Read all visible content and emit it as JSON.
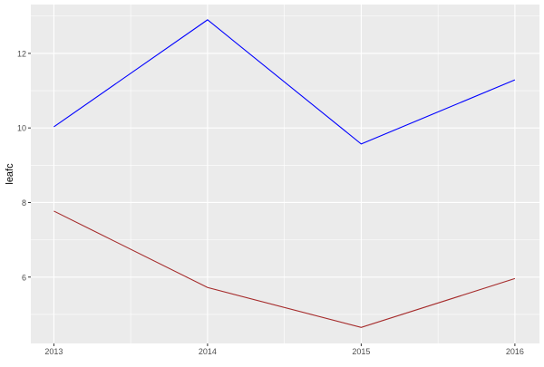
{
  "chart_data": {
    "type": "line",
    "title": "",
    "xlabel": "",
    "ylabel": "leafc",
    "x": [
      2013,
      2014,
      2015,
      2016
    ],
    "x_tick_labels": [
      "2013",
      "2014",
      "2015",
      "2016"
    ],
    "y_ticks": [
      6,
      8,
      10,
      12
    ],
    "y_tick_labels": [
      "6",
      "8",
      "10",
      "12"
    ],
    "xlim": [
      2012.85,
      2016.16
    ],
    "ylim": [
      4.22,
      13.31
    ],
    "grid": true,
    "legend": "none",
    "series": [
      {
        "color": "#0000ff",
        "values": [
          10.03,
          12.9,
          9.57,
          11.29
        ]
      },
      {
        "color": "#a52a2a",
        "values": [
          7.77,
          5.72,
          4.65,
          5.96
        ]
      }
    ],
    "panel_background": "#ebebeb",
    "grid_color": "#ffffff"
  }
}
